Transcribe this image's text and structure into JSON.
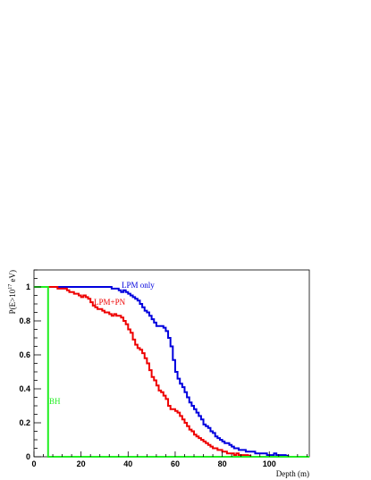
{
  "chart_data": {
    "type": "line",
    "title": "",
    "xlabel": "Depth (m)",
    "ylabel": "P(E>10¹⁷ eV)",
    "ylabel_parts": {
      "base": "P(E>10",
      "exp": "17",
      "unit": " eV)"
    },
    "xlim": [
      0,
      117
    ],
    "ylim": [
      0,
      1.1
    ],
    "x_ticks": [
      0,
      20,
      40,
      60,
      80,
      100
    ],
    "y_ticks": [
      0,
      0.2,
      0.4,
      0.6,
      0.8,
      1
    ],
    "x_tick_labels": [
      "0",
      "20",
      "40",
      "60",
      "80",
      "100"
    ],
    "y_tick_labels": [
      "0",
      "0.2",
      "0.4",
      "0.6",
      "0.8",
      "1"
    ],
    "grid": false,
    "series": [
      {
        "name": "LPM only",
        "color": "#0000dd",
        "points": [
          [
            0,
            1
          ],
          [
            32,
            1
          ],
          [
            33,
            0.99
          ],
          [
            35,
            0.99
          ],
          [
            36,
            0.98
          ],
          [
            37,
            0.97
          ],
          [
            38,
            0.98
          ],
          [
            39,
            0.97
          ],
          [
            40,
            0.96
          ],
          [
            41,
            0.95
          ],
          [
            42,
            0.94
          ],
          [
            43,
            0.93
          ],
          [
            44,
            0.92
          ],
          [
            45,
            0.9
          ],
          [
            46,
            0.88
          ],
          [
            47,
            0.86
          ],
          [
            48,
            0.85
          ],
          [
            49,
            0.83
          ],
          [
            50,
            0.81
          ],
          [
            51,
            0.79
          ],
          [
            52,
            0.77
          ],
          [
            53,
            0.77
          ],
          [
            54,
            0.77
          ],
          [
            55,
            0.76
          ],
          [
            56,
            0.74
          ],
          [
            57,
            0.7
          ],
          [
            58,
            0.65
          ],
          [
            59,
            0.57
          ],
          [
            60,
            0.5
          ],
          [
            61,
            0.46
          ],
          [
            62,
            0.43
          ],
          [
            63,
            0.41
          ],
          [
            64,
            0.38
          ],
          [
            65,
            0.35
          ],
          [
            66,
            0.32
          ],
          [
            67,
            0.3
          ],
          [
            68,
            0.28
          ],
          [
            69,
            0.26
          ],
          [
            70,
            0.24
          ],
          [
            71,
            0.22
          ],
          [
            72,
            0.19
          ],
          [
            73,
            0.18
          ],
          [
            74,
            0.17
          ],
          [
            75,
            0.15
          ],
          [
            76,
            0.14
          ],
          [
            77,
            0.12
          ],
          [
            78,
            0.11
          ],
          [
            79,
            0.1
          ],
          [
            80,
            0.09
          ],
          [
            81,
            0.08
          ],
          [
            82,
            0.08
          ],
          [
            83,
            0.07
          ],
          [
            84,
            0.06
          ],
          [
            85,
            0.05
          ],
          [
            86,
            0.05
          ],
          [
            87,
            0.04
          ],
          [
            88,
            0.04
          ],
          [
            89,
            0.04
          ],
          [
            90,
            0.03
          ],
          [
            91,
            0.03
          ],
          [
            92,
            0.03
          ],
          [
            93,
            0.03
          ],
          [
            94,
            0.02
          ],
          [
            95,
            0.02
          ],
          [
            96,
            0.02
          ],
          [
            97,
            0.02
          ],
          [
            98,
            0.02
          ],
          [
            99,
            0.01
          ],
          [
            100,
            0.01
          ],
          [
            101,
            0.01
          ],
          [
            102,
            0.02
          ],
          [
            103,
            0.01
          ],
          [
            104,
            0.01
          ],
          [
            106,
            0.01
          ],
          [
            107,
            0.005
          ],
          [
            108,
            0
          ],
          [
            117,
            0
          ]
        ]
      },
      {
        "name": "LPM+PN",
        "color": "#ee0000",
        "points": [
          [
            0,
            1
          ],
          [
            9,
            1
          ],
          [
            10,
            0.99
          ],
          [
            13,
            0.99
          ],
          [
            14,
            0.98
          ],
          [
            15,
            0.97
          ],
          [
            17,
            0.96
          ],
          [
            19,
            0.95
          ],
          [
            20,
            0.94
          ],
          [
            21,
            0.95
          ],
          [
            22,
            0.94
          ],
          [
            23,
            0.93
          ],
          [
            24,
            0.91
          ],
          [
            25,
            0.89
          ],
          [
            26,
            0.88
          ],
          [
            27,
            0.87
          ],
          [
            28,
            0.87
          ],
          [
            29,
            0.86
          ],
          [
            30,
            0.85
          ],
          [
            31,
            0.85
          ],
          [
            32,
            0.84
          ],
          [
            33,
            0.83
          ],
          [
            34,
            0.84
          ],
          [
            35,
            0.83
          ],
          [
            36,
            0.83
          ],
          [
            37,
            0.82
          ],
          [
            38,
            0.8
          ],
          [
            39,
            0.78
          ],
          [
            40,
            0.75
          ],
          [
            41,
            0.73
          ],
          [
            42,
            0.69
          ],
          [
            43,
            0.66
          ],
          [
            44,
            0.64
          ],
          [
            45,
            0.63
          ],
          [
            46,
            0.61
          ],
          [
            47,
            0.58
          ],
          [
            48,
            0.55
          ],
          [
            49,
            0.51
          ],
          [
            50,
            0.47
          ],
          [
            51,
            0.45
          ],
          [
            52,
            0.42
          ],
          [
            53,
            0.39
          ],
          [
            54,
            0.38
          ],
          [
            55,
            0.36
          ],
          [
            56,
            0.34
          ],
          [
            57,
            0.3
          ],
          [
            58,
            0.28
          ],
          [
            59,
            0.28
          ],
          [
            60,
            0.27
          ],
          [
            61,
            0.26
          ],
          [
            62,
            0.24
          ],
          [
            63,
            0.22
          ],
          [
            64,
            0.2
          ],
          [
            65,
            0.18
          ],
          [
            66,
            0.16
          ],
          [
            67,
            0.15
          ],
          [
            68,
            0.13
          ],
          [
            69,
            0.12
          ],
          [
            70,
            0.11
          ],
          [
            71,
            0.1
          ],
          [
            72,
            0.09
          ],
          [
            73,
            0.08
          ],
          [
            74,
            0.07
          ],
          [
            75,
            0.06
          ],
          [
            76,
            0.05
          ],
          [
            77,
            0.05
          ],
          [
            78,
            0.04
          ],
          [
            79,
            0.04
          ],
          [
            80,
            0.03
          ],
          [
            81,
            0.03
          ],
          [
            82,
            0.02
          ],
          [
            84,
            0.02
          ],
          [
            85,
            0.01
          ],
          [
            86,
            0.02
          ],
          [
            87,
            0.01
          ],
          [
            90,
            0.01
          ],
          [
            91,
            0.005
          ],
          [
            92,
            0
          ],
          [
            117,
            0
          ]
        ]
      },
      {
        "name": "BH",
        "color": "#22ee22",
        "points": [
          [
            0,
            1
          ],
          [
            4.8,
            1
          ],
          [
            6,
            0
          ],
          [
            117,
            0
          ]
        ]
      }
    ]
  }
}
